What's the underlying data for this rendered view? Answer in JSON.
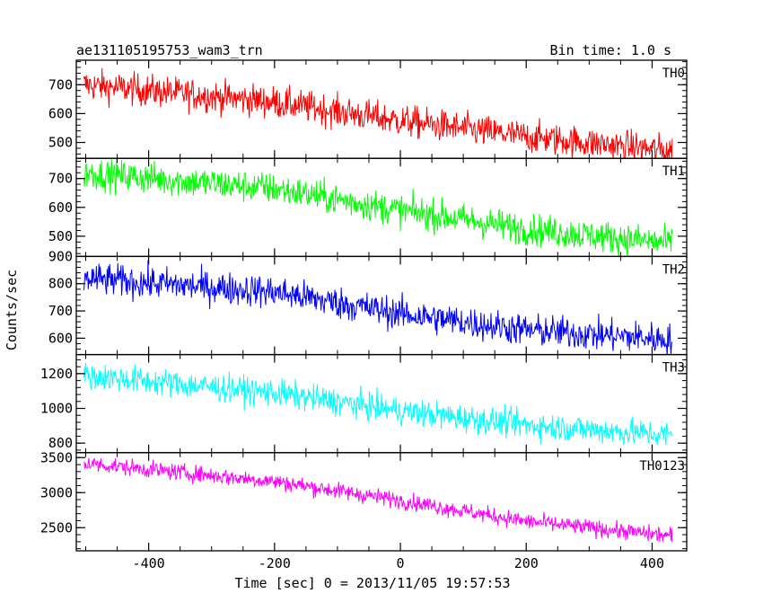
{
  "header": {
    "title": "ae131105195753_wam3_trn",
    "bin_time": "Bin time: 1.0 s"
  },
  "chart_data": {
    "type": "line",
    "xlabel": "Time [sec] 0 = 2013/11/05 19:57:53",
    "ylabel": "Counts/sec",
    "xlim": [
      -515,
      455
    ],
    "x_ticks": [
      -400,
      -200,
      0,
      200,
      400
    ],
    "x_range": [
      -503,
      432
    ],
    "bin_time_sec": 1.0,
    "series": [
      {
        "name": "TH0",
        "color": "#ff0000",
        "ylim": [
          445,
          785
        ],
        "y_ticks": [
          500,
          600,
          700
        ],
        "trend": [
          [
            -503,
            700
          ],
          [
            -200,
            640
          ],
          [
            0,
            575
          ],
          [
            200,
            520
          ],
          [
            432,
            470
          ]
        ],
        "noise": 28
      },
      {
        "name": "TH1",
        "color": "#00ff00",
        "ylim": [
          430,
          770
        ],
        "y_ticks": [
          500,
          600,
          700
        ],
        "trend": [
          [
            -503,
            720
          ],
          [
            -200,
            665
          ],
          [
            0,
            590
          ],
          [
            200,
            525
          ],
          [
            432,
            475
          ]
        ],
        "noise": 28
      },
      {
        "name": "TH2",
        "color": "#0000ff",
        "ylim": [
          540,
          900
        ],
        "y_ticks": [
          600,
          700,
          800,
          900
        ],
        "trend": [
          [
            -503,
            820
          ],
          [
            -200,
            770
          ],
          [
            0,
            690
          ],
          [
            200,
            630
          ],
          [
            432,
            595
          ]
        ],
        "noise": 30
      },
      {
        "name": "TH3",
        "color": "#00ffff",
        "ylim": [
          745,
          1310
        ],
        "y_ticks": [
          800,
          1000,
          1200
        ],
        "trend": [
          [
            -503,
            1190
          ],
          [
            -200,
            1090
          ],
          [
            0,
            985
          ],
          [
            200,
            905
          ],
          [
            432,
            845
          ]
        ],
        "noise": 40
      },
      {
        "name": "TH0123",
        "color": "#ff00ff",
        "ylim": [
          2170,
          3570
        ],
        "y_ticks": [
          2500,
          3000,
          3500
        ],
        "trend": [
          [
            -503,
            3420
          ],
          [
            -200,
            3160
          ],
          [
            0,
            2890
          ],
          [
            200,
            2590
          ],
          [
            432,
            2380
          ]
        ],
        "noise": 60
      }
    ]
  }
}
